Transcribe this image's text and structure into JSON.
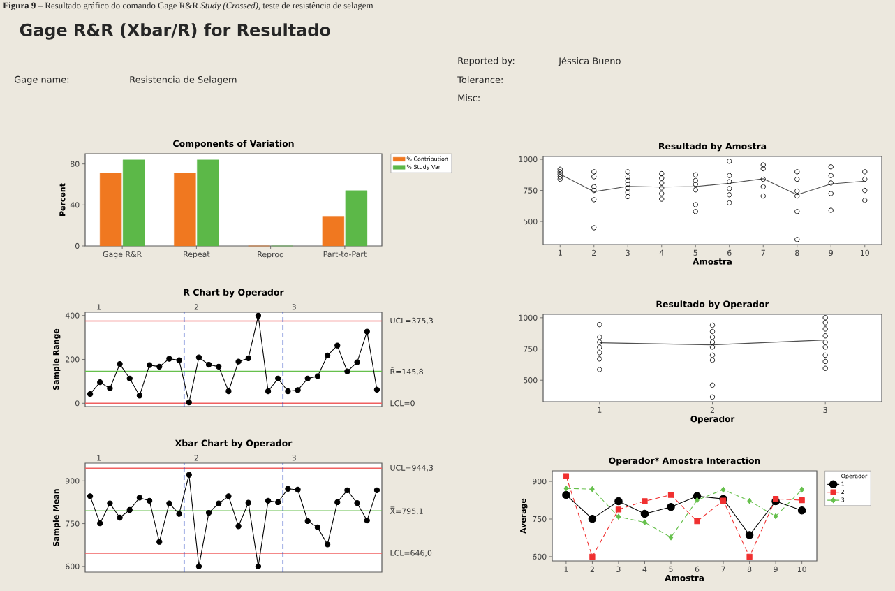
{
  "chart_data": [
    {
      "type": "other",
      "title": "Gage R&R (Xbar/R) for Resultado",
      "annotations": [
        "**Figura 9** – Resultado gráfico do comando Gage R&R *Study (Crossed)*, teste de resistência de selagem",
        "Gage name:",
        "Resistencia de Selagem",
        "Reported by:",
        "Jéssica Bueno",
        "Tolerance:",
        "Misc:"
      ]
    },
    {
      "type": "bar",
      "title": "Components of Variation",
      "ylabel": "Percent",
      "categories": [
        "Gage R&R",
        "Repeat",
        "Reprod",
        "Part-to-Part"
      ],
      "series": [
        {
          "name": "% Contribution",
          "color": "#f07820",
          "values": [
            71,
            71,
            0,
            29
          ]
        },
        {
          "name": "% Study Var",
          "color": "#5cb848",
          "values": [
            84,
            84,
            0,
            54
          ]
        }
      ],
      "ylim": [
        0,
        90
      ],
      "yticks": [
        0,
        40,
        80
      ],
      "legend": "top right"
    },
    {
      "type": "line",
      "title": "R Chart by Operador",
      "ylabel": "Sample Range",
      "categories": [
        null,
        null,
        null,
        null,
        null,
        null,
        null,
        null,
        null,
        null,
        null,
        null,
        null,
        null,
        null,
        null,
        null,
        null,
        null,
        null,
        null,
        null,
        null,
        null,
        null,
        null,
        null,
        null,
        null,
        null
      ],
      "series": [
        {
          "color": "#000000",
          "values": [
            42,
            96,
            68,
            179,
            113,
            35,
            174,
            167,
            203,
            196,
            4,
            209,
            176,
            167,
            55,
            190,
            205,
            399,
            55,
            113,
            55,
            60,
            113,
            123,
            218,
            263,
            145,
            187,
            327,
            62
          ]
        }
      ],
      "marker": "circle",
      "ylim": [
        -15,
        415
      ],
      "yticks": [
        0,
        200,
        400
      ],
      "x2lim": [
        0.86,
        3.9
      ],
      "x2ticks": [
        1,
        2,
        3
      ],
      "ref_lines": [
        {
          "axis": "y",
          "value": 375.3,
          "label": "UCL=375,3",
          "color": "#f06060"
        },
        {
          "axis": "y",
          "value": 145.8,
          "label": "R̄=145,8",
          "color": "#66c04c"
        },
        {
          "axis": "y",
          "value": 0,
          "label": "LCL=0",
          "color": "#f06060"
        }
      ]
    },
    {
      "type": "line",
      "title": "Xbar Chart by Operador",
      "ylabel": "Sample Mean",
      "categories": [
        null,
        null,
        null,
        null,
        null,
        null,
        null,
        null,
        null,
        null,
        null,
        null,
        null,
        null,
        null,
        null,
        null,
        null,
        null,
        null,
        null,
        null,
        null,
        null,
        null,
        null,
        null,
        null,
        null,
        null
      ],
      "series": [
        {
          "color": "#000000",
          "values": [
            846,
            751,
            821,
            771,
            798,
            841,
            830,
            686,
            821,
            784,
            921,
            600,
            788,
            821,
            846,
            741,
            823,
            600,
            830,
            825,
            872,
            869,
            759,
            737,
            677,
            825,
            867,
            822,
            761,
            867
          ]
        }
      ],
      "marker": "circle",
      "ylim": [
        580,
        962
      ],
      "yticks": [
        600,
        750,
        900
      ],
      "x2lim": [
        0.86,
        3.9
      ],
      "x2ticks": [
        1,
        2,
        3
      ],
      "ref_lines": [
        {
          "axis": "y",
          "value": 944.3,
          "label": "UCL=944,3",
          "color": "#f06060"
        },
        {
          "axis": "y",
          "value": 795.1,
          "label": "X̿=795,1",
          "color": "#66c04c"
        },
        {
          "axis": "y",
          "value": 646.0,
          "label": "LCL=646,0",
          "color": "#f06060"
        }
      ]
    },
    {
      "type": "scatter",
      "title": "Resultado by Amostra",
      "xlabel": "Amostra",
      "marker": "circle",
      "series": [
        {
          "type": "scatter",
          "color": "#000000",
          "x": [
            1,
            1,
            1,
            1,
            1,
            2,
            2,
            2,
            2,
            2,
            2,
            3,
            3,
            3,
            3,
            3,
            3,
            3,
            4,
            4,
            4,
            4,
            4,
            4,
            5,
            5,
            5,
            5,
            5,
            5,
            6,
            6,
            6,
            6,
            6,
            6,
            7,
            7,
            7,
            7,
            7,
            8,
            8,
            8,
            8,
            8,
            8,
            9,
            9,
            9,
            9,
            9,
            10,
            10,
            10,
            10
          ],
          "values": [
            920,
            900,
            880,
            860,
            840,
            900,
            860,
            780,
            750,
            675,
            450,
            900,
            860,
            830,
            800,
            770,
            735,
            700,
            885,
            850,
            810,
            770,
            725,
            680,
            875,
            830,
            800,
            755,
            635,
            580,
            985,
            870,
            820,
            765,
            715,
            650,
            955,
            925,
            840,
            780,
            705,
            900,
            840,
            745,
            705,
            580,
            355,
            940,
            870,
            810,
            725,
            590,
            900,
            840,
            750,
            670
          ]
        },
        {
          "type": "line",
          "color": "#505050",
          "marker": "none",
          "x": [
            1,
            2,
            3,
            4,
            5,
            6,
            7,
            8,
            9,
            10
          ],
          "values": [
            881,
            740,
            783,
            777,
            781,
            808,
            844,
            715,
            802,
            825
          ]
        }
      ],
      "xlim": [
        0.5,
        10.5
      ],
      "xticks": [
        1,
        2,
        3,
        4,
        5,
        6,
        7,
        8,
        9,
        10
      ],
      "ylim": [
        315,
        1023
      ],
      "yticks": [
        500,
        750,
        1000
      ]
    },
    {
      "type": "scatter",
      "title": "Resultado by Operador",
      "xlabel": "Operador",
      "marker": "circle",
      "series": [
        {
          "type": "scatter",
          "color": "#000000",
          "x": [
            1,
            1,
            1,
            1,
            1,
            1,
            1,
            2,
            2,
            2,
            2,
            2,
            2,
            2,
            2,
            2,
            3,
            3,
            3,
            3,
            3,
            3,
            3,
            3,
            3
          ],
          "values": [
            945,
            845,
            805,
            765,
            720,
            670,
            585,
            940,
            890,
            845,
            805,
            765,
            700,
            660,
            460,
            365,
            1000,
            960,
            910,
            855,
            805,
            765,
            700,
            650,
            595
          ]
        },
        {
          "type": "line",
          "color": "#505050",
          "marker": "none",
          "x": [
            1,
            2,
            3
          ],
          "values": [
            800,
            783,
            822
          ]
        }
      ],
      "xlim": [
        0.5,
        3.5
      ],
      "xticks": [
        1,
        2,
        3
      ],
      "ylim": [
        328,
        1027
      ],
      "yticks": [
        500,
        750,
        1000
      ]
    },
    {
      "type": "line",
      "title": "Operador* Amostra Interaction",
      "xlabel": "Amostra",
      "ylabel": "Average",
      "legend_title": "Operador",
      "legend": "top right",
      "x": [
        1,
        2,
        3,
        4,
        5,
        6,
        7,
        8,
        9,
        10
      ],
      "series": [
        {
          "name": "1",
          "color": "#000000",
          "marker": "circle",
          "line_style": "solid",
          "values": [
            846,
            751,
            821,
            771,
            798,
            841,
            830,
            686,
            821,
            784
          ]
        },
        {
          "name": "2",
          "color": "#f03030",
          "marker": "square",
          "line_style": "dashed",
          "values": [
            921,
            600,
            788,
            821,
            846,
            741,
            823,
            600,
            830,
            825
          ]
        },
        {
          "name": "3",
          "color": "#66c04c",
          "marker": "diamond",
          "line_style": "dashed",
          "values": [
            872,
            869,
            759,
            737,
            677,
            825,
            867,
            822,
            761,
            867
          ]
        }
      ],
      "xlim": [
        0.47,
        10.57
      ],
      "xticks": [
        1,
        2,
        3,
        4,
        5,
        6,
        7,
        8,
        9,
        10
      ],
      "ylim": [
        583,
        942
      ],
      "yticks": [
        600,
        750,
        900
      ]
    }
  ]
}
